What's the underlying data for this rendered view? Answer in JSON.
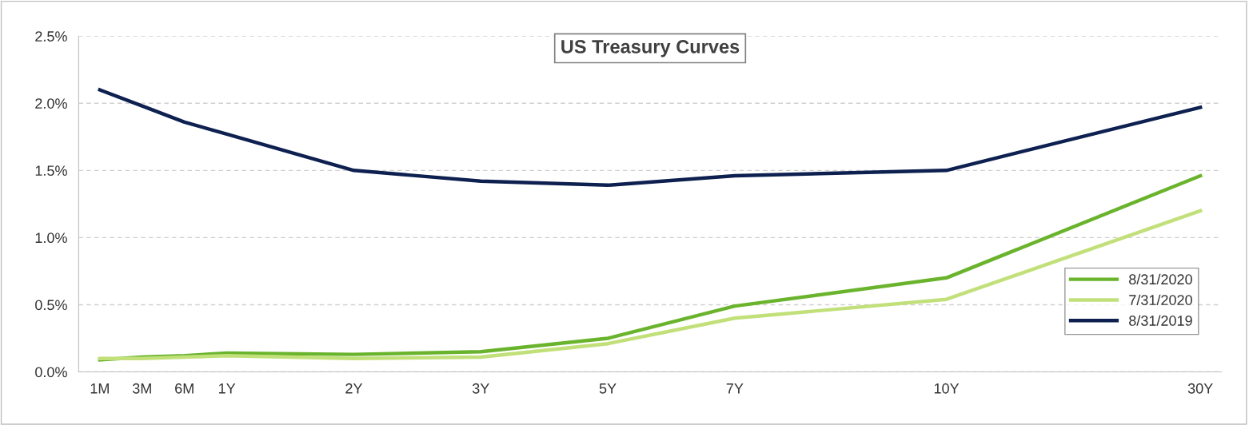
{
  "chart_data": {
    "type": "line",
    "title": "US Treasury Curves",
    "categories": [
      "1M",
      "3M",
      "6M",
      "1Y",
      null,
      null,
      "2Y",
      null,
      null,
      "3Y",
      null,
      null,
      "5Y",
      null,
      null,
      "7Y",
      null,
      null,
      null,
      null,
      "10Y",
      null,
      null,
      null,
      null,
      null,
      "30Y"
    ],
    "ylim": [
      0,
      2.5
    ],
    "yticks": [
      {
        "value": 0,
        "label": "0.0%"
      },
      {
        "value": 0.5,
        "label": "0.5%"
      },
      {
        "value": 1.0,
        "label": "1.0%"
      },
      {
        "value": 1.5,
        "label": "1.5%"
      },
      {
        "value": 2.0,
        "label": "2.0%"
      },
      {
        "value": 2.5,
        "label": "2.5%"
      }
    ],
    "grid": "y",
    "legend": "bottom right",
    "marker": "none",
    "line_style": "solid",
    "series": [
      {
        "name": "8/31/2020",
        "color": "#6ab42d",
        "values": [
          0.09,
          0.11,
          0.12,
          0.14,
          null,
          null,
          0.13,
          null,
          null,
          0.15,
          null,
          null,
          0.25,
          null,
          null,
          0.49,
          null,
          null,
          null,
          null,
          0.7,
          null,
          null,
          null,
          null,
          null,
          1.46
        ]
      },
      {
        "name": "7/31/2020",
        "color": "#c2e07a",
        "values": [
          0.1,
          0.1,
          0.11,
          0.12,
          null,
          null,
          0.1,
          null,
          null,
          0.11,
          null,
          null,
          0.21,
          null,
          null,
          0.4,
          null,
          null,
          null,
          null,
          0.54,
          null,
          null,
          null,
          null,
          null,
          1.2
        ]
      },
      {
        "name": "8/31/2019",
        "color": "#0d2050",
        "values": [
          2.1,
          1.98,
          1.86,
          1.77,
          null,
          null,
          1.5,
          null,
          null,
          1.42,
          null,
          null,
          1.39,
          null,
          null,
          1.46,
          null,
          null,
          null,
          null,
          1.5,
          null,
          null,
          null,
          null,
          null,
          1.97
        ]
      }
    ]
  }
}
